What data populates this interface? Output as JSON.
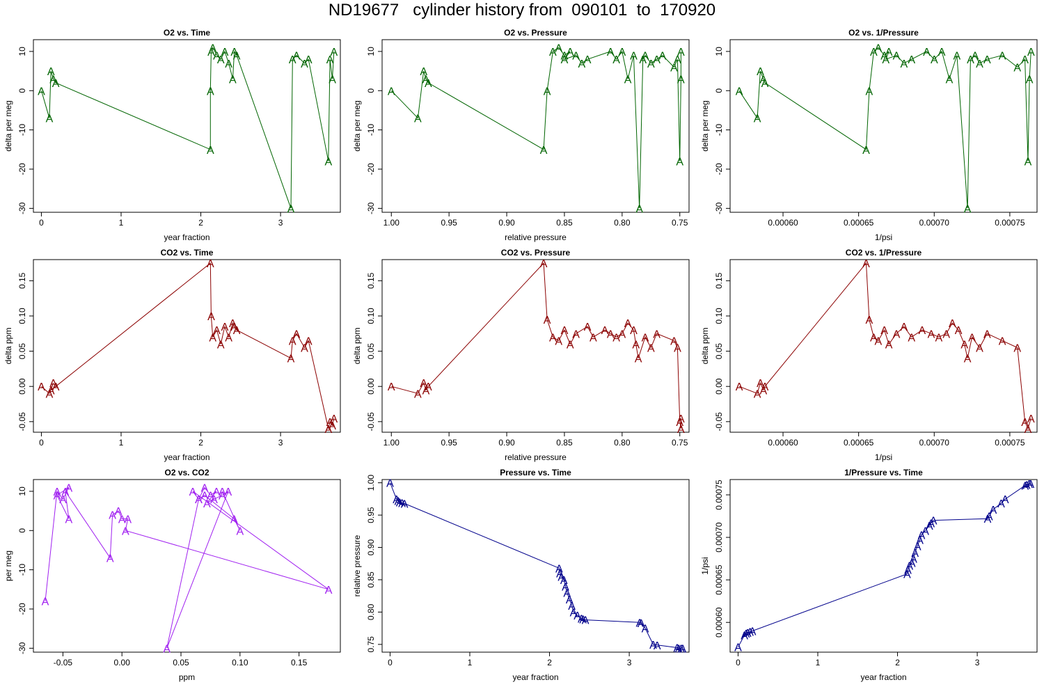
{
  "page_title": "ND19677   cylinder history from  090101  to  170920",
  "marker_glyph": "A",
  "colors": {
    "o2": "#006400",
    "co2": "#8B0000",
    "o2co2": "#A020F0",
    "pressure": "#00008B"
  },
  "chart_data": [
    {
      "type": "line",
      "title": "O2 vs. Time",
      "xlabel": "year fraction",
      "ylabel": "delta per meg",
      "color": "o2",
      "xlim": [
        -0.1,
        3.75
      ],
      "ylim": [
        -31,
        13
      ],
      "xreverse": false,
      "xticks": [
        0,
        1,
        2,
        3
      ],
      "xtick_labels": [
        "0",
        "1",
        "2",
        "3"
      ],
      "yticks": [
        -30,
        -20,
        -10,
        0,
        10
      ],
      "ytick_labels": [
        "-30",
        "-20",
        "-10",
        "0",
        "10"
      ],
      "x": [
        0.0,
        0.1,
        0.12,
        0.15,
        0.18,
        2.12,
        2.12,
        2.13,
        2.15,
        2.2,
        2.25,
        2.3,
        2.35,
        2.4,
        2.42,
        2.45,
        3.13,
        3.15,
        3.2,
        3.3,
        3.35,
        3.6,
        3.62,
        3.65,
        3.67
      ],
      "y": [
        0,
        -7,
        5,
        3,
        2,
        -15,
        0,
        10,
        11,
        9,
        8,
        10,
        7,
        3,
        10,
        9,
        -30,
        8,
        9,
        7,
        8,
        -18,
        8,
        3,
        10
      ]
    },
    {
      "type": "line",
      "title": "O2 vs. Pressure",
      "xlabel": "relative pressure",
      "ylabel": "delta per meg",
      "color": "o2",
      "xlim": [
        0.742,
        1.008
      ],
      "ylim": [
        -31,
        13
      ],
      "xreverse": true,
      "xticks": [
        1.0,
        0.95,
        0.9,
        0.85,
        0.8,
        0.75
      ],
      "xtick_labels": [
        "1.00",
        "0.95",
        "0.90",
        "0.85",
        "0.80",
        "0.75"
      ],
      "yticks": [
        -30,
        -20,
        -10,
        0,
        10
      ],
      "ytick_labels": [
        "-30",
        "-20",
        "-10",
        "0",
        "10"
      ],
      "x": [
        1.0,
        0.977,
        0.972,
        0.97,
        0.968,
        0.868,
        0.865,
        0.86,
        0.855,
        0.85,
        0.845,
        0.85,
        0.84,
        0.835,
        0.83,
        0.81,
        0.805,
        0.8,
        0.795,
        0.79,
        0.785,
        0.782,
        0.78,
        0.775,
        0.77,
        0.765,
        0.755,
        0.752,
        0.75,
        0.749,
        0.749
      ],
      "y": [
        0,
        -7,
        5,
        3,
        2,
        -15,
        0,
        10,
        11,
        9,
        10,
        8,
        9,
        7,
        8,
        10,
        8,
        10,
        3,
        9,
        -30,
        8,
        9,
        7,
        8,
        9,
        6,
        8,
        -18,
        3,
        10
      ]
    },
    {
      "type": "line",
      "title": "O2 vs. 1/Pressure",
      "xlabel": "1/psi",
      "ylabel": "delta per meg",
      "color": "o2",
      "xlim": [
        0.000565,
        0.000768
      ],
      "ylim": [
        -31,
        13
      ],
      "xreverse": false,
      "xticks": [
        0.0006,
        0.00065,
        0.0007,
        0.00075
      ],
      "xtick_labels": [
        "0.00060",
        "0.00065",
        "0.00070",
        "0.00075"
      ],
      "yticks": [
        -30,
        -20,
        -10,
        0,
        10
      ],
      "ytick_labels": [
        "-30",
        "-20",
        "-10",
        "0",
        "10"
      ],
      "x": [
        0.000571,
        0.000583,
        0.000585,
        0.000587,
        0.000588,
        0.000655,
        0.000657,
        0.00066,
        0.000663,
        0.000667,
        0.00067,
        0.000668,
        0.000675,
        0.00068,
        0.000685,
        0.000695,
        0.0007,
        0.000705,
        0.00071,
        0.000715,
        0.000722,
        0.000724,
        0.000727,
        0.00073,
        0.000735,
        0.000745,
        0.000755,
        0.00076,
        0.000762,
        0.000763,
        0.000764
      ],
      "y": [
        0,
        -7,
        5,
        3,
        2,
        -15,
        0,
        10,
        11,
        9,
        10,
        8,
        9,
        7,
        8,
        10,
        8,
        10,
        3,
        9,
        -30,
        8,
        9,
        7,
        8,
        9,
        6,
        8,
        -18,
        3,
        10
      ]
    },
    {
      "type": "line",
      "title": "CO2 vs. Time",
      "xlabel": "year fraction",
      "ylabel": "delta ppm",
      "color": "co2",
      "xlim": [
        -0.1,
        3.75
      ],
      "ylim": [
        -0.065,
        0.18
      ],
      "xreverse": false,
      "xticks": [
        0,
        1,
        2,
        3
      ],
      "xtick_labels": [
        "0",
        "1",
        "2",
        "3"
      ],
      "yticks": [
        -0.05,
        0.0,
        0.05,
        0.1,
        0.15
      ],
      "ytick_labels": [
        "-0.05",
        "0.00",
        "0.05",
        "0.10",
        "0.15"
      ],
      "x": [
        0.0,
        0.1,
        0.15,
        0.12,
        0.18,
        2.12,
        2.13,
        2.15,
        2.2,
        2.25,
        2.3,
        2.35,
        2.4,
        2.42,
        2.45,
        3.13,
        3.15,
        3.2,
        3.3,
        3.35,
        3.6,
        3.62,
        3.65,
        3.67
      ],
      "y": [
        0.0,
        -0.01,
        0.005,
        -0.005,
        0.0,
        0.175,
        0.1,
        0.07,
        0.08,
        0.06,
        0.085,
        0.07,
        0.09,
        0.085,
        0.08,
        0.04,
        0.065,
        0.075,
        0.055,
        0.065,
        -0.06,
        -0.05,
        -0.055,
        -0.045
      ]
    },
    {
      "type": "line",
      "title": "CO2 vs. Pressure",
      "xlabel": "relative pressure",
      "ylabel": "delta ppm",
      "color": "co2",
      "xlim": [
        0.742,
        1.008
      ],
      "ylim": [
        -0.065,
        0.18
      ],
      "xreverse": true,
      "xticks": [
        1.0,
        0.95,
        0.9,
        0.85,
        0.8,
        0.75
      ],
      "xtick_labels": [
        "1.00",
        "0.95",
        "0.90",
        "0.85",
        "0.80",
        "0.75"
      ],
      "yticks": [
        -0.05,
        0.0,
        0.05,
        0.1,
        0.15
      ],
      "ytick_labels": [
        "-0.05",
        "0.00",
        "0.05",
        "0.10",
        "0.15"
      ],
      "x": [
        1.0,
        0.977,
        0.972,
        0.97,
        0.968,
        0.868,
        0.865,
        0.86,
        0.855,
        0.85,
        0.845,
        0.84,
        0.83,
        0.825,
        0.815,
        0.81,
        0.805,
        0.8,
        0.795,
        0.79,
        0.788,
        0.786,
        0.78,
        0.775,
        0.77,
        0.755,
        0.752,
        0.75,
        0.749,
        0.749
      ],
      "y": [
        0.0,
        -0.01,
        0.005,
        -0.005,
        0.0,
        0.175,
        0.095,
        0.07,
        0.065,
        0.08,
        0.06,
        0.075,
        0.085,
        0.07,
        0.08,
        0.075,
        0.07,
        0.075,
        0.09,
        0.08,
        0.06,
        0.04,
        0.07,
        0.055,
        0.075,
        0.065,
        0.055,
        -0.05,
        -0.06,
        -0.045
      ]
    },
    {
      "type": "line",
      "title": "CO2 vs. 1/Pressure",
      "xlabel": "1/psi",
      "ylabel": "delta ppm",
      "color": "co2",
      "xlim": [
        0.000565,
        0.000768
      ],
      "ylim": [
        -0.065,
        0.18
      ],
      "xreverse": false,
      "xticks": [
        0.0006,
        0.00065,
        0.0007,
        0.00075
      ],
      "xtick_labels": [
        "0.00060",
        "0.00065",
        "0.00070",
        "0.00075"
      ],
      "yticks": [
        -0.05,
        0.0,
        0.05,
        0.1,
        0.15
      ],
      "ytick_labels": [
        "-0.05",
        "0.00",
        "0.05",
        "0.10",
        "0.15"
      ],
      "x": [
        0.000571,
        0.000583,
        0.000585,
        0.000587,
        0.000588,
        0.000655,
        0.000657,
        0.00066,
        0.000663,
        0.000667,
        0.00067,
        0.000675,
        0.00068,
        0.000685,
        0.000692,
        0.000698,
        0.000703,
        0.000708,
        0.000712,
        0.000716,
        0.00072,
        0.000722,
        0.000725,
        0.00073,
        0.000735,
        0.000745,
        0.000755,
        0.00076,
        0.000762,
        0.000764
      ],
      "y": [
        0.0,
        -0.01,
        0.005,
        -0.005,
        0.0,
        0.175,
        0.095,
        0.07,
        0.065,
        0.08,
        0.06,
        0.075,
        0.085,
        0.07,
        0.08,
        0.075,
        0.07,
        0.075,
        0.09,
        0.08,
        0.06,
        0.04,
        0.07,
        0.055,
        0.075,
        0.065,
        0.055,
        -0.05,
        -0.06,
        -0.045
      ]
    },
    {
      "type": "line",
      "title": "O2 vs. CO2",
      "xlabel": "ppm",
      "ylabel": "per meg",
      "color": "o2co2",
      "xlim": [
        -0.075,
        0.185
      ],
      "ylim": [
        -31,
        13
      ],
      "xreverse": false,
      "xticks": [
        -0.05,
        0.0,
        0.05,
        0.1,
        0.15
      ],
      "xtick_labels": [
        "-0.05",
        "0.00",
        "0.05",
        "0.10",
        "0.15"
      ],
      "yticks": [
        -30,
        -20,
        -10,
        0,
        10
      ],
      "ytick_labels": [
        "-30",
        "-20",
        "-10",
        "0",
        "10"
      ],
      "x": [
        -0.065,
        -0.055,
        -0.05,
        -0.045,
        -0.055,
        -0.045,
        -0.048,
        -0.01,
        -0.008,
        -0.003,
        0.0,
        0.005,
        0.003,
        0.175,
        0.06,
        0.065,
        0.07,
        0.075,
        0.08,
        0.072,
        0.078,
        0.085,
        0.09,
        0.038,
        0.065,
        0.07,
        0.095,
        0.1,
        0.085
      ],
      "y": [
        -18,
        10,
        8,
        11,
        9,
        3,
        10,
        -7,
        4,
        5,
        3,
        3,
        0,
        -15,
        10,
        8,
        11,
        9,
        10,
        7,
        8,
        9,
        10,
        -30,
        8,
        9,
        3,
        0,
        10
      ]
    },
    {
      "type": "line",
      "title": "Pressure vs. Time",
      "xlabel": "year fraction",
      "ylabel": "relative pressure",
      "color": "pressure",
      "xlim": [
        -0.1,
        3.75
      ],
      "ylim": [
        0.738,
        1.005
      ],
      "xreverse": false,
      "xticks": [
        0,
        1,
        2,
        3
      ],
      "xtick_labels": [
        "0",
        "1",
        "2",
        "3"
      ],
      "yticks": [
        0.75,
        0.8,
        0.85,
        0.9,
        0.95,
        1.0
      ],
      "ytick_labels": [
        "0.75",
        "0.80",
        "0.85",
        "0.90",
        "0.95",
        "1.00"
      ],
      "x": [
        0.0,
        0.08,
        0.1,
        0.12,
        0.15,
        0.18,
        2.12,
        2.13,
        2.15,
        2.18,
        2.2,
        2.22,
        2.25,
        2.28,
        2.3,
        2.35,
        2.4,
        2.42,
        2.45,
        3.13,
        3.15,
        3.2,
        3.3,
        3.35,
        3.6,
        3.62,
        3.65,
        3.67
      ],
      "y": [
        1.0,
        0.975,
        0.972,
        0.97,
        0.969,
        0.968,
        0.868,
        0.86,
        0.855,
        0.85,
        0.84,
        0.83,
        0.82,
        0.81,
        0.8,
        0.795,
        0.79,
        0.789,
        0.788,
        0.784,
        0.783,
        0.775,
        0.75,
        0.749,
        0.745,
        0.744,
        0.744,
        0.744
      ]
    },
    {
      "type": "line",
      "title": "1/Pressure vs. Time",
      "xlabel": "year fraction",
      "ylabel": "1/psi",
      "color": "pressure",
      "xlim": [
        -0.1,
        3.75
      ],
      "ylim": [
        0.000565,
        0.000768
      ],
      "xreverse": false,
      "xticks": [
        0,
        1,
        2,
        3
      ],
      "xtick_labels": [
        "0",
        "1",
        "2",
        "3"
      ],
      "yticks": [
        0.0006,
        0.00065,
        0.0007,
        0.00075
      ],
      "ytick_labels": [
        "0.00060",
        "0.00065",
        "0.00070",
        "0.00075"
      ],
      "x": [
        0.0,
        0.08,
        0.1,
        0.12,
        0.15,
        0.18,
        2.12,
        2.13,
        2.15,
        2.18,
        2.2,
        2.22,
        2.25,
        2.28,
        2.3,
        2.35,
        2.4,
        2.42,
        2.45,
        3.13,
        3.15,
        3.2,
        3.3,
        3.35,
        3.6,
        3.62,
        3.65,
        3.67
      ],
      "y": [
        0.000571,
        0.000585,
        0.000587,
        0.000588,
        0.000589,
        0.00059,
        0.000657,
        0.000662,
        0.000667,
        0.00067,
        0.000675,
        0.000682,
        0.00069,
        0.000697,
        0.000703,
        0.000708,
        0.000714,
        0.000717,
        0.00072,
        0.000722,
        0.000725,
        0.000733,
        0.00074,
        0.000745,
        0.000761,
        0.000762,
        0.000763,
        0.000763
      ]
    }
  ]
}
